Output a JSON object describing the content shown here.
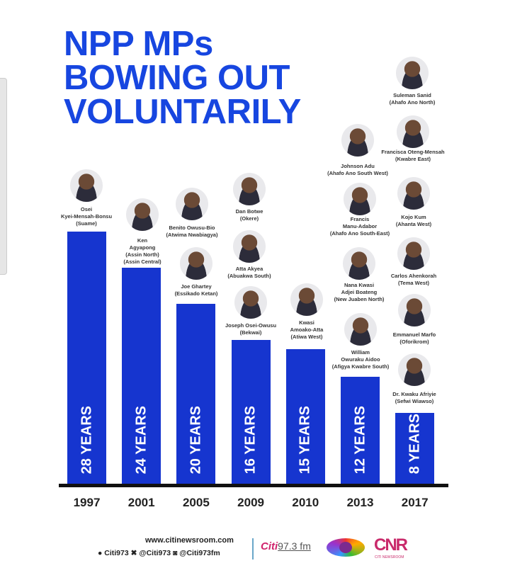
{
  "title": "NPP MPs\nBOWING OUT\nVOLUNTARILY",
  "chart_data": {
    "type": "bar",
    "categories": [
      "1997",
      "2001",
      "2005",
      "2009",
      "2010",
      "2013",
      "2017"
    ],
    "values": [
      28,
      24,
      20,
      16,
      15,
      12,
      8
    ],
    "bar_labels": [
      "28 YEARS",
      "24 YEARS",
      "20 YEARS",
      "16 YEARS",
      "15 YEARS",
      "12 YEARS",
      "8 YEARS"
    ],
    "ylim": [
      0,
      28
    ],
    "grid": false,
    "bar_color": "#1635cf",
    "title_color": "#1746e0"
  },
  "people": [
    {
      "year": "1997",
      "lines": [
        "Osei",
        "Kyei-Mensah-Bonsu",
        "(Suame)"
      ]
    },
    {
      "year": "2001",
      "lines": [
        "Ken",
        "Agyapong",
        "(Assin North)",
        "(Assin Central)"
      ]
    },
    {
      "year": "2005",
      "lines": [
        "Benito Owusu-Bio",
        "(Atwima Nwabiagya)"
      ]
    },
    {
      "year": "2005",
      "lines": [
        "Joe Ghartey",
        "(Essikado Ketan)"
      ]
    },
    {
      "year": "2009",
      "lines": [
        "Dan Botwe",
        "(Okere)"
      ]
    },
    {
      "year": "2009",
      "lines": [
        "Atta Akyea",
        "(Abuakwa South)"
      ]
    },
    {
      "year": "2009",
      "lines": [
        "Joseph Osei-Owusu",
        "(Bekwai)"
      ]
    },
    {
      "year": "2010",
      "lines": [
        "Kwasi",
        "Amoako-Atta",
        "(Atiwa West)"
      ]
    },
    {
      "year": "2013",
      "lines": [
        "Johnson Adu",
        "(Ahafo Ano South West)"
      ]
    },
    {
      "year": "2013",
      "lines": [
        "Francis",
        "Manu-Adabor",
        "(Ahafo Ano South-East)"
      ]
    },
    {
      "year": "2013",
      "lines": [
        "Nana Kwasi",
        "Adjei Boateng",
        "(New Juaben North)"
      ]
    },
    {
      "year": "2013",
      "lines": [
        "William",
        "Owuraku Aidoo",
        "(Afigya Kwabre South)"
      ]
    },
    {
      "year": "2017",
      "lines": [
        "Suleman Sanid",
        "(Ahafo Ano North)"
      ]
    },
    {
      "year": "2017",
      "lines": [
        "Francisca Oteng-Mensah",
        "(Kwabre East)"
      ]
    },
    {
      "year": "2017",
      "lines": [
        "Kojo Kum",
        "(Ahanta West)"
      ]
    },
    {
      "year": "2017",
      "lines": [
        "Carlos Ahenkorah",
        "(Tema West)"
      ]
    },
    {
      "year": "2017",
      "lines": [
        "Emmanuel Marfo",
        "(Oforikrom)"
      ]
    },
    {
      "year": "2017",
      "lines": [
        "Dr. Kwaku Afriyie",
        "(Sefwi Wiawso)"
      ]
    }
  ],
  "footer": {
    "website": "www.citinewsroom.com",
    "facebook": "Citi973",
    "x": "@Citi973",
    "instagram": "@Citi973fm",
    "logo_citi": "Citi",
    "logo_freq": "97.3 fm",
    "logo_cnr": "CNR",
    "logo_cnr_sub": "CITI NEWSROOM"
  }
}
